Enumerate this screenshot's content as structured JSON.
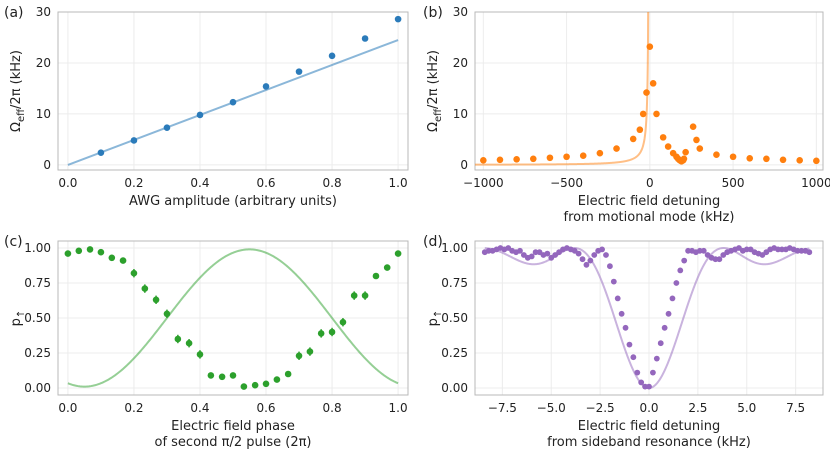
{
  "figure": {
    "panel_labels": [
      "(a)",
      "(b)",
      "(c)",
      "(d)"
    ]
  },
  "colors": {
    "a": "#2b7bba",
    "b": "#ff7f0e",
    "c": "#2ca02c",
    "d": "#9467bd"
  },
  "chart_data": [
    {
      "id": "a",
      "type": "scatter",
      "panel_label": "(a)",
      "xlabel": "AWG amplitude (arbitrary units)",
      "ylabel_symbol": "Ω",
      "ylabel_sub": "eff",
      "ylabel_rest": "/2π (kHz)",
      "xlim": [
        -0.03,
        1.03
      ],
      "ylim": [
        -1,
        30
      ],
      "xticks": [
        0.0,
        0.2,
        0.4,
        0.6,
        0.8,
        1.0
      ],
      "xtick_labels": [
        "0.0",
        "0.2",
        "0.4",
        "0.6",
        "0.8",
        "1.0"
      ],
      "yticks": [
        0,
        10,
        20,
        30
      ],
      "ytick_labels": [
        "0",
        "10",
        "20",
        "30"
      ],
      "points": {
        "x": [
          0.1,
          0.2,
          0.3,
          0.4,
          0.5,
          0.6,
          0.7,
          0.8,
          0.9,
          1.0
        ],
        "y": [
          2.4,
          4.8,
          7.3,
          9.8,
          12.3,
          15.4,
          18.3,
          21.4,
          24.8,
          28.6
        ]
      },
      "fit": {
        "x": [
          0.0,
          1.0
        ],
        "y": [
          0.0,
          24.5
        ]
      }
    },
    {
      "id": "b",
      "type": "scatter",
      "panel_label": "(b)",
      "xlabel_lines": [
        "Electric field detuning",
        "from motional mode (kHz)"
      ],
      "ylabel_symbol": "Ω",
      "ylabel_sub": "eff",
      "ylabel_rest": "/2π (kHz)",
      "xlim": [
        -1050,
        1040
      ],
      "ylim": [
        -1,
        30
      ],
      "xticks": [
        -1000,
        -500,
        0,
        500,
        1000
      ],
      "xtick_labels": [
        "−1000",
        "−500",
        "0",
        "500",
        "1000"
      ],
      "yticks": [
        0,
        10,
        20,
        30
      ],
      "ytick_labels": [
        "0",
        "10",
        "20",
        "30"
      ],
      "points": {
        "x": [
          -1000,
          -900,
          -800,
          -700,
          -600,
          -500,
          -400,
          -300,
          -200,
          -100,
          -60,
          -40,
          -20,
          0,
          20,
          40,
          80,
          110,
          140,
          160,
          170,
          180,
          190,
          200,
          205,
          215,
          260,
          280,
          300,
          400,
          500,
          600,
          700,
          800,
          900,
          1000
        ],
        "y": [
          0.9,
          1.0,
          1.1,
          1.2,
          1.4,
          1.6,
          1.8,
          2.3,
          3.2,
          5.1,
          6.9,
          10.0,
          14.2,
          23.2,
          16.0,
          10.0,
          5.4,
          3.6,
          2.3,
          1.6,
          1.2,
          0.9,
          0.7,
          0.9,
          1.2,
          2.5,
          7.5,
          4.9,
          3.2,
          2.0,
          1.6,
          1.3,
          1.2,
          1.0,
          0.9,
          0.8
        ]
      },
      "fit_model": {
        "type": "two_resonance",
        "poles": [
          -5,
          235
        ],
        "amplitude": 150,
        "ratio": 0.82,
        "floor": 0
      }
    },
    {
      "id": "c",
      "type": "scatter",
      "panel_label": "(c)",
      "xlabel_lines": [
        "Electric field phase",
        "of second π/2 pulse (2π)"
      ],
      "ylabel_symbol": "p",
      "ylabel_sub": "↑",
      "ylabel_rest": "",
      "xlim": [
        -0.03,
        1.03
      ],
      "ylim": [
        -0.05,
        1.05
      ],
      "xticks": [
        0.0,
        0.2,
        0.4,
        0.6,
        0.8,
        1.0
      ],
      "xtick_labels": [
        "0.0",
        "0.2",
        "0.4",
        "0.6",
        "0.8",
        "1.0"
      ],
      "yticks": [
        0.0,
        0.25,
        0.5,
        0.75,
        1.0
      ],
      "ytick_labels": [
        "0.00",
        "0.25",
        "0.50",
        "0.75",
        "1.00"
      ],
      "points": {
        "x": [
          0.0,
          0.033,
          0.067,
          0.1,
          0.133,
          0.167,
          0.2,
          0.233,
          0.267,
          0.3,
          0.333,
          0.367,
          0.4,
          0.433,
          0.467,
          0.5,
          0.533,
          0.567,
          0.6,
          0.633,
          0.667,
          0.7,
          0.733,
          0.767,
          0.8,
          0.833,
          0.867,
          0.9,
          0.933,
          0.967,
          1.0
        ],
        "y": [
          0.96,
          0.98,
          0.99,
          0.97,
          0.93,
          0.91,
          0.82,
          0.71,
          0.63,
          0.53,
          0.35,
          0.32,
          0.24,
          0.09,
          0.08,
          0.09,
          0.01,
          0.02,
          0.03,
          0.06,
          0.1,
          0.23,
          0.26,
          0.39,
          0.4,
          0.47,
          0.66,
          0.66,
          0.8,
          0.86,
          0.96
        ]
      },
      "errors": [
        0.01,
        0.01,
        0.01,
        0.01,
        0.02,
        0.02,
        0.03,
        0.03,
        0.03,
        0.03,
        0.03,
        0.03,
        0.03,
        0.02,
        0.02,
        0.02,
        0.01,
        0.01,
        0.01,
        0.02,
        0.02,
        0.03,
        0.03,
        0.03,
        0.03,
        0.03,
        0.03,
        0.03,
        0.02,
        0.02,
        0.01
      ],
      "fit_model": {
        "type": "cosine",
        "offset": 0.5,
        "amplitude": 0.49,
        "center": 0.55
      }
    },
    {
      "id": "d",
      "type": "scatter",
      "panel_label": "(d)",
      "xlabel_lines": [
        "Electric field detuning",
        "from sideband resonance (kHz)"
      ],
      "ylabel_symbol": "p",
      "ylabel_sub": "↑",
      "ylabel_rest": "",
      "xlim": [
        -8.9,
        8.9
      ],
      "ylim": [
        -0.05,
        1.05
      ],
      "xticks": [
        -7.5,
        -5.0,
        -2.5,
        0.0,
        2.5,
        5.0,
        7.5
      ],
      "xtick_labels": [
        "−7.5",
        "−5.0",
        "−2.5",
        "0.0",
        "2.5",
        "5.0",
        "7.5"
      ],
      "yticks": [
        0.0,
        0.25,
        0.5,
        0.75,
        1.0
      ],
      "ytick_labels": [
        "0.00",
        "0.25",
        "0.50",
        "0.75",
        "1.00"
      ],
      "points": {
        "x": [
          -8.4,
          -8.2,
          -8.0,
          -7.8,
          -7.6,
          -7.4,
          -7.2,
          -7.0,
          -6.8,
          -6.6,
          -6.4,
          -6.2,
          -6.0,
          -5.8,
          -5.6,
          -5.4,
          -5.2,
          -5.0,
          -4.8,
          -4.6,
          -4.4,
          -4.2,
          -4.0,
          -3.8,
          -3.6,
          -3.4,
          -3.2,
          -3.0,
          -2.8,
          -2.6,
          -2.4,
          -2.2,
          -2.0,
          -1.8,
          -1.6,
          -1.4,
          -1.2,
          -1.0,
          -0.8,
          -0.6,
          -0.4,
          -0.2,
          0.0,
          0.2,
          0.4,
          0.6,
          0.8,
          1.0,
          1.2,
          1.4,
          1.6,
          1.8,
          2.0,
          2.2,
          2.4,
          2.6,
          2.8,
          3.0,
          3.2,
          3.4,
          3.6,
          3.8,
          4.0,
          4.2,
          4.4,
          4.6,
          4.8,
          5.0,
          5.2,
          5.4,
          5.6,
          5.8,
          6.0,
          6.2,
          6.4,
          6.6,
          6.8,
          7.0,
          7.2,
          7.4,
          7.6,
          7.8,
          8.0,
          8.2
        ],
        "y": [
          0.97,
          0.98,
          0.98,
          0.99,
          1.0,
          0.99,
          1.0,
          0.98,
          0.97,
          0.98,
          0.95,
          0.93,
          0.94,
          0.97,
          0.97,
          0.95,
          0.96,
          0.93,
          0.95,
          0.97,
          0.99,
          1.0,
          0.99,
          0.98,
          0.96,
          0.92,
          0.88,
          0.91,
          0.95,
          0.98,
          0.99,
          0.95,
          0.87,
          0.76,
          0.64,
          0.53,
          0.43,
          0.31,
          0.22,
          0.11,
          0.04,
          0.01,
          0.01,
          0.11,
          0.21,
          0.32,
          0.43,
          0.53,
          0.64,
          0.75,
          0.84,
          0.91,
          0.98,
          0.98,
          0.97,
          0.98,
          0.98,
          0.95,
          0.93,
          0.92,
          0.92,
          0.95,
          0.97,
          0.98,
          0.99,
          1.0,
          0.98,
          0.99,
          0.99,
          0.97,
          0.96,
          0.95,
          0.97,
          0.99,
          1.0,
          0.99,
          0.99,
          0.99,
          1.0,
          0.99,
          0.98,
          0.98,
          0.98,
          0.97
        ]
      },
      "fit_model": {
        "type": "rabi_sinc",
        "rabi_khz": 2.2,
        "pulse_ms": 0.227
      }
    }
  ]
}
